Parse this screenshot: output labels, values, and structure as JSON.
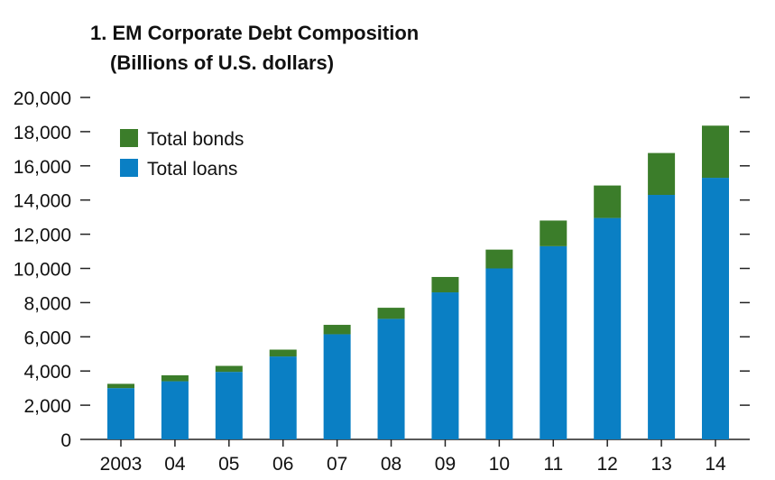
{
  "chart_data": {
    "type": "bar",
    "stacked": true,
    "title": "1. EM Corporate Debt Composition",
    "subtitle": "(Billions of U.S. dollars)",
    "categories": [
      "2003",
      "04",
      "05",
      "06",
      "07",
      "08",
      "09",
      "10",
      "11",
      "12",
      "13",
      "14"
    ],
    "series": [
      {
        "name": "Total loans",
        "color": "#0a7fc4",
        "values": [
          3000,
          3400,
          3950,
          4850,
          6150,
          7050,
          8600,
          10000,
          11300,
          12950,
          14300,
          15300
        ]
      },
      {
        "name": "Total bonds",
        "color": "#3b7d2a",
        "values": [
          250,
          350,
          350,
          400,
          550,
          650,
          900,
          1100,
          1500,
          1900,
          2450,
          3050
        ]
      }
    ],
    "legend": {
      "placement": "top-left",
      "entries": [
        "Total bonds",
        "Total loans"
      ]
    },
    "ylim": [
      0,
      20000
    ],
    "yticks": [
      "0",
      "2,000",
      "4,000",
      "6,000",
      "8,000",
      "10,000",
      "12,000",
      "14,000",
      "16,000",
      "18,000",
      "20,000"
    ],
    "grid": false
  }
}
